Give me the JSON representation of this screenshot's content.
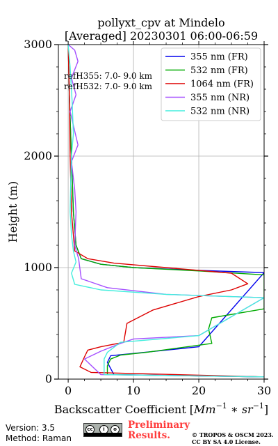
{
  "title_line1": "pollyxt_cpv at Mindelo",
  "title_line2": "[Averaged] 20230301 06:00-06:59",
  "annotations": [
    "refH355:  7.0- 9.0 km",
    "refH532:  7.0- 9.0 km"
  ],
  "footer": {
    "version": "Version: 3.5",
    "method": "Method: Raman",
    "preliminary_line1": "Preliminary",
    "preliminary_line2": "Results.",
    "copyright_line1": "© TROPOS & OSCM 2023.",
    "copyright_line2": "CC BY SA 4.0 License.",
    "license_badge": "cc-by-sa-icon"
  },
  "chart_data": {
    "type": "line",
    "title": "pollyxt_cpv at Mindelo\n[Averaged] 20230301 06:00-06:59",
    "xlabel": "Backscatter Coefficient [Mm^-1 * sr^-1]",
    "ylabel": "Height (m)",
    "xlim": [
      -1.5,
      30
    ],
    "ylim": [
      0,
      3000
    ],
    "xticks": [
      0,
      10,
      20,
      30
    ],
    "yticks": [
      0,
      1000,
      2000,
      3000
    ],
    "grid": true,
    "legend_position": "top-right",
    "series": [
      {
        "name": "355 nm (FR)",
        "color": "#0000ee",
        "x": [
          0.0,
          0.2,
          0.5,
          0.8,
          1.2,
          2.0,
          5.0,
          10.0,
          20.0,
          30.0,
          20.0,
          10.0,
          6.5,
          6.0,
          7.0,
          30.0
        ],
        "y": [
          3000,
          2500,
          2000,
          1500,
          1200,
          1080,
          1030,
          1000,
          975,
          955,
          290,
          230,
          210,
          150,
          40,
          20
        ]
      },
      {
        "name": "532 nm (FR)",
        "color": "#00aa00",
        "x": [
          0.0,
          0.2,
          0.5,
          0.8,
          1.2,
          2.0,
          5.0,
          10.0,
          20.0,
          30.0,
          30.0,
          22.0,
          21.5,
          22.0,
          12.0,
          8.0,
          6.5,
          6.0,
          6.0,
          30.0
        ],
        "y": [
          3000,
          2500,
          2000,
          1500,
          1200,
          1080,
          1030,
          1000,
          970,
          935,
          630,
          550,
          450,
          320,
          240,
          215,
          180,
          120,
          40,
          20
        ]
      },
      {
        "name": "1064 nm (FR)",
        "color": "#dd0000",
        "x": [
          0.0,
          0.2,
          0.3,
          0.5,
          1.0,
          3.0,
          7.0,
          15.0,
          25.0,
          27.5,
          25.0,
          20.0,
          13.0,
          9.0,
          8.5,
          5.0,
          3.0,
          2.5,
          1.8,
          3.5,
          30.0
        ],
        "y": [
          3000,
          2500,
          2000,
          1500,
          1150,
          1080,
          1040,
          1000,
          950,
          855,
          800,
          740,
          620,
          500,
          330,
          290,
          260,
          200,
          110,
          60,
          20
        ]
      },
      {
        "name": "355 nm (NR)",
        "color": "#a44eff",
        "x": [
          0.0,
          1.0,
          1.5,
          0.5,
          1.2,
          0.3,
          1.5,
          0.5,
          1.0,
          1.2,
          1.0,
          1.6,
          2.0,
          6.0,
          15.0,
          30.0,
          20.0,
          10.0,
          8.0,
          5.0,
          2.5,
          5.0,
          30.0
        ],
        "y": [
          3000,
          2950,
          2850,
          2700,
          2550,
          2400,
          2100,
          1950,
          1700,
          1500,
          1200,
          1080,
          900,
          820,
          760,
          730,
          390,
          360,
          320,
          250,
          180,
          40,
          20
        ]
      },
      {
        "name": "532 nm (NR)",
        "color": "#44eedd",
        "x": [
          0.0,
          0.3,
          0.6,
          0.8,
          0.5,
          0.4,
          0.3,
          0.5,
          0.8,
          1.2,
          0.5,
          1.0,
          5.0,
          15.0,
          30.0,
          20.0,
          8.0,
          6.0,
          5.5,
          5.5,
          30.0
        ],
        "y": [
          3000,
          2800,
          2500,
          2200,
          2000,
          1800,
          1500,
          1300,
          1150,
          1050,
          950,
          850,
          800,
          760,
          730,
          390,
          330,
          240,
          180,
          40,
          20
        ]
      }
    ]
  }
}
